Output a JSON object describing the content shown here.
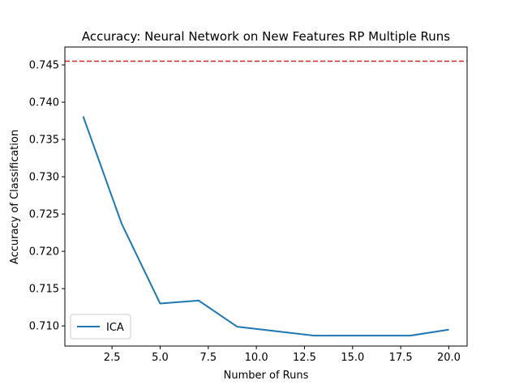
{
  "chart_data": {
    "type": "line",
    "title": "Accuracy: Neural Network on New Features RP Multiple Runs",
    "xlabel": "Number of Runs",
    "ylabel": "Accuracy of Classification",
    "xlim": [
      0.05,
      20.95
    ],
    "ylim": [
      0.7073,
      0.7474
    ],
    "xticks": [
      2.5,
      5.0,
      7.5,
      10.0,
      12.5,
      15.0,
      17.5,
      20.0
    ],
    "xtick_labels": [
      "2.5",
      "5.0",
      "7.5",
      "10.0",
      "12.5",
      "15.0",
      "17.5",
      "20.0"
    ],
    "yticks": [
      0.71,
      0.715,
      0.72,
      0.725,
      0.73,
      0.735,
      0.74,
      0.745
    ],
    "ytick_labels": [
      "0.710",
      "0.715",
      "0.720",
      "0.725",
      "0.730",
      "0.735",
      "0.740",
      "0.745"
    ],
    "grid": false,
    "legend_position": "lower-left",
    "series": [
      {
        "name": "ICA",
        "color": "#1f77b4",
        "x": [
          1,
          3,
          5,
          7,
          9,
          11,
          13,
          15,
          17,
          18,
          20
        ],
        "y": [
          0.7381,
          0.7237,
          0.713,
          0.7134,
          0.7099,
          0.7093,
          0.7087,
          0.7087,
          0.7087,
          0.7087,
          0.7095
        ]
      }
    ],
    "reference_lines": [
      {
        "y": 0.7455,
        "color": "#d62728",
        "style": "dashed"
      }
    ]
  }
}
